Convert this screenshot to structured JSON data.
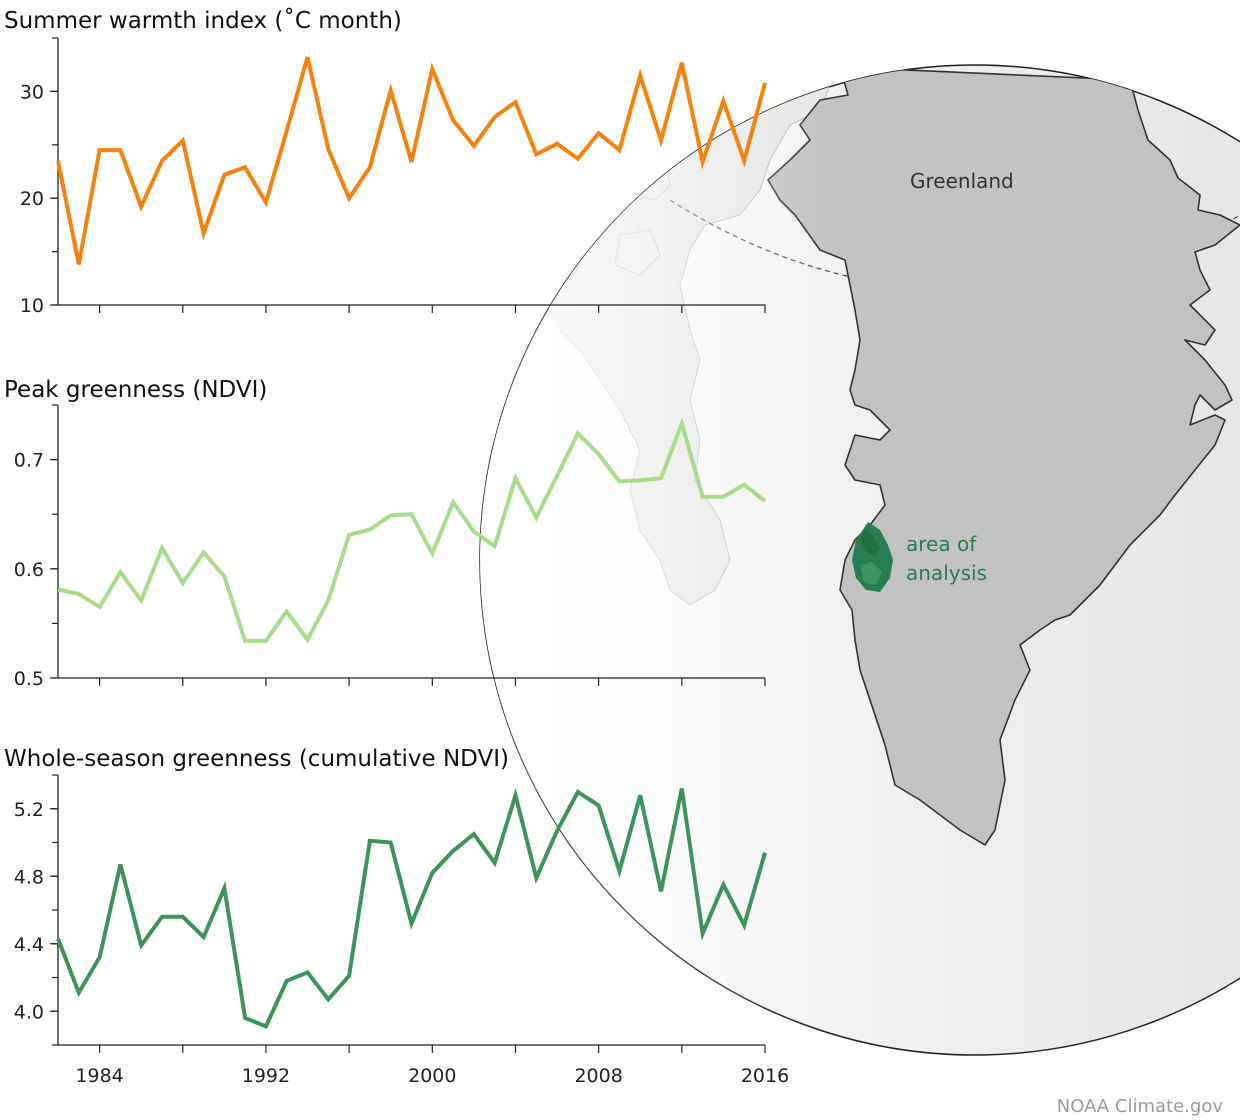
{
  "chart_data": [
    {
      "type": "line",
      "title": "Summer warmth index (˚C month)",
      "x": [
        1982,
        1983,
        1984,
        1985,
        1986,
        1987,
        1988,
        1989,
        1990,
        1991,
        1992,
        1993,
        1994,
        1995,
        1996,
        1997,
        1998,
        1999,
        2000,
        2001,
        2002,
        2003,
        2004,
        2005,
        2006,
        2007,
        2008,
        2009,
        2010,
        2011,
        2012,
        2013,
        2014,
        2015,
        2016
      ],
      "series": [
        {
          "values": [
            23.5,
            13.8,
            24.5,
            24.5,
            19.2,
            23.5,
            25.4,
            16.7,
            22.2,
            22.9,
            19.6,
            26.3,
            33.2,
            24.6,
            20.0,
            22.9,
            30.1,
            23.4,
            32.1,
            27.3,
            24.9,
            27.6,
            29.0,
            24.1,
            25.1,
            23.7,
            26.1,
            24.5,
            31.5,
            25.4,
            32.7,
            23.4,
            29.1,
            23.5,
            30.8
          ]
        }
      ],
      "color": "#f5820f",
      "ylim": [
        10,
        35
      ],
      "yticks": [
        10,
        20,
        30
      ],
      "ytick_labels": [
        "10",
        "20",
        "30"
      ]
    },
    {
      "type": "line",
      "title": "Peak greenness (NDVI)",
      "x": [
        1982,
        1983,
        1984,
        1985,
        1986,
        1987,
        1988,
        1989,
        1990,
        1991,
        1992,
        1993,
        1994,
        1995,
        1996,
        1997,
        1998,
        1999,
        2000,
        2001,
        2002,
        2003,
        2004,
        2005,
        2006,
        2007,
        2008,
        2009,
        2010,
        2011,
        2012,
        2013,
        2014,
        2015,
        2016
      ],
      "series": [
        {
          "values": [
            0.581,
            0.577,
            0.565,
            0.597,
            0.571,
            0.619,
            0.587,
            0.615,
            0.593,
            0.534,
            0.534,
            0.561,
            0.535,
            0.571,
            0.631,
            0.636,
            0.649,
            0.65,
            0.614,
            0.661,
            0.634,
            0.621,
            0.683,
            0.647,
            0.685,
            0.724,
            0.705,
            0.68,
            0.681,
            0.683,
            0.733,
            0.666,
            0.666,
            0.677,
            0.662
          ]
        }
      ],
      "color": "#a6dc8a",
      "ylim": [
        0.5,
        0.75
      ],
      "yticks": [
        0.5,
        0.6,
        0.7
      ],
      "ytick_labels": [
        "0.5",
        "0.6",
        "0.7"
      ]
    },
    {
      "type": "line",
      "title": "Whole-season greenness (cumulative NDVI)",
      "x": [
        1982,
        1983,
        1984,
        1985,
        1986,
        1987,
        1988,
        1989,
        1990,
        1991,
        1992,
        1993,
        1994,
        1995,
        1996,
        1997,
        1998,
        1999,
        2000,
        2001,
        2002,
        2003,
        2004,
        2005,
        2006,
        2007,
        2008,
        2009,
        2010,
        2011,
        2012,
        2013,
        2014,
        2015,
        2016
      ],
      "series": [
        {
          "values": [
            4.43,
            4.11,
            4.32,
            4.87,
            4.39,
            4.56,
            4.56,
            4.44,
            4.73,
            3.96,
            3.91,
            4.18,
            4.23,
            4.07,
            4.21,
            5.01,
            5.0,
            4.52,
            4.82,
            4.95,
            5.05,
            4.88,
            5.28,
            4.79,
            5.07,
            5.3,
            5.22,
            4.83,
            5.28,
            4.71,
            5.32,
            4.46,
            4.75,
            4.51,
            4.94
          ]
        }
      ],
      "color": "#3d9459",
      "ylim": [
        3.8,
        5.4
      ],
      "yticks": [
        4.0,
        4.4,
        4.8,
        5.2
      ],
      "ytick_labels": [
        "4.0",
        "4.4",
        "4.8",
        "5.2"
      ],
      "xticks": [
        1984,
        1992,
        2000,
        2008,
        2016
      ],
      "xtick_labels": [
        "1984",
        "1992",
        "2000",
        "2008",
        "2016"
      ]
    }
  ],
  "map": {
    "country_label": "Greenland",
    "area_label_line1": "area of",
    "area_label_line2": "analysis",
    "land_color": "#c2c2c2",
    "area_color": "#2a7d4f"
  },
  "credit": "NOAA Climate.gov"
}
